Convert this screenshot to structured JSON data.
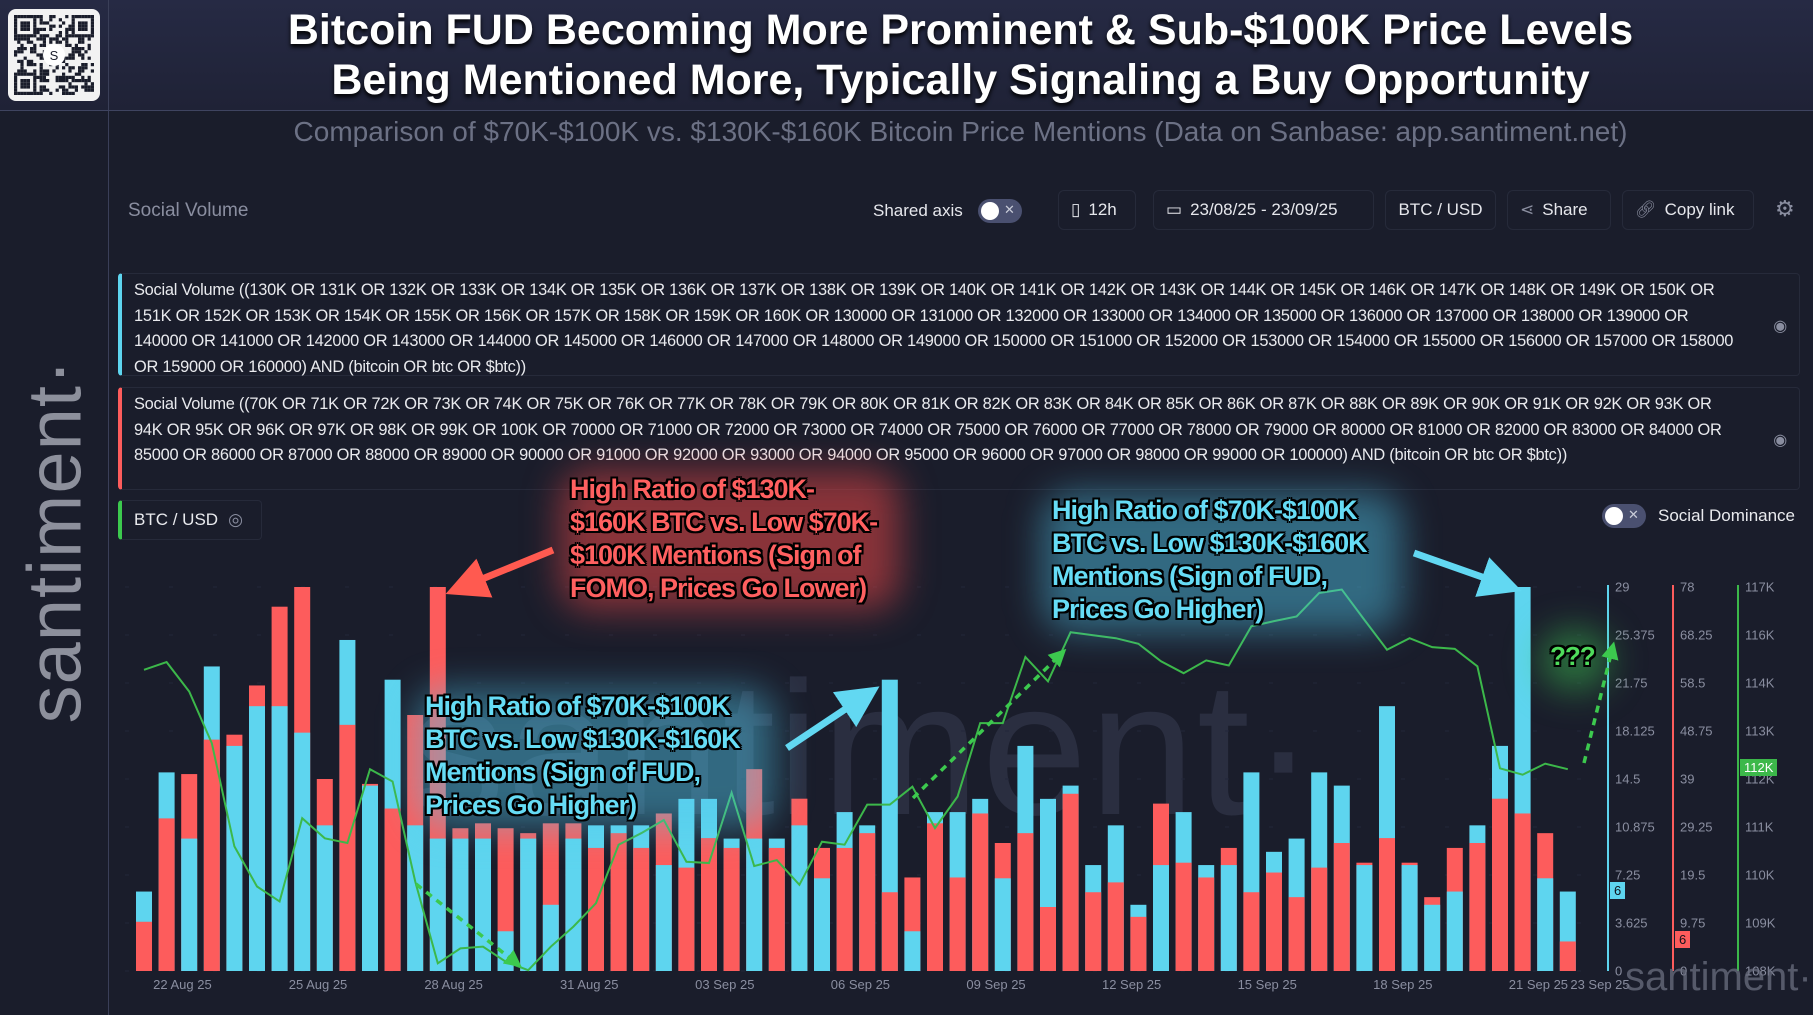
{
  "header": {
    "title_line1": "Bitcoin FUD Becoming More Prominent & Sub-$100K Price Levels",
    "title_line2": "Being Mentioned More, Typically Signaling a Buy Opportunity",
    "subtitle": "Comparison of $70K-$100K vs. $130K-$160K Bitcoin Price Mentions (Data on Sanbase: app.santiment.net)"
  },
  "brand": {
    "vertical_logo": "santiment·",
    "watermark": "santiment·",
    "corner_logo": "santiment·",
    "qr_center": "S"
  },
  "toolbar": {
    "section_label": "Social Volume",
    "shared_axis_label": "Shared axis",
    "interval": "12h",
    "date_range": "23/08/25 - 23/09/25",
    "pair": "BTC / USD",
    "share": "Share",
    "copy_link": "Copy link"
  },
  "metrics": [
    {
      "text": "Social Volume ((130K OR 131K OR 132K OR 133K OR 134K OR 135K OR 136K OR 137K OR 138K OR 139K OR 140K OR 141K OR 142K OR 143K OR 144K OR 145K OR 146K OR 147K OR 148K OR 149K OR 150K OR 151K OR 152K OR 153K OR 154K OR 155K OR 156K OR 157K OR 158K OR 159K OR 160K OR 130000 OR 131000 OR 132000 OR 133000 OR 134000 OR 135000 OR 136000 OR 137000 OR 138000 OR 139000 OR 140000 OR 141000 OR 142000 OR 143000 OR 144000 OR 145000 OR 146000 OR 147000 OR 148000 OR 149000 OR 150000 OR 151000 OR 152000 OR 153000 OR 154000 OR 155000 OR 156000 OR 157000 OR 158000 OR 159000 OR 160000) AND (bitcoin OR btc OR $btc))",
      "color": "#5ed5ef"
    },
    {
      "text": "Social Volume ((70K OR 71K OR 72K OR 73K OR 74K OR 75K OR 76K OR 77K OR 78K OR 79K OR 80K OR 81K OR 82K OR 83K OR 84K OR 85K OR 86K OR 87K OR 88K OR 89K OR 90K OR 91K OR 92K OR 93K OR 94K OR 95K OR 96K OR 97K OR 98K OR 99K OR 100K OR 70000 OR 71000 OR 72000 OR 73000 OR 74000 OR 75000 OR 76000 OR 77000 OR 78000 OR 79000 OR 80000 OR 81000 OR 82000 OR 83000 OR 84000 OR 85000 OR 86000 OR 87000 OR 88000 OR 89000 OR 90000 OR 91000 OR 92000 OR 93000 OR 94000 OR 95000 OR 96000 OR 97000 OR 98000 OR 99000 OR 100000) AND (bitcoin OR btc OR $btc))",
      "color": "#fd5c5c"
    },
    {
      "text": "BTC / USD",
      "color": "#3cc94e"
    }
  ],
  "social_dominance_label": "Social Dominance",
  "annotations": {
    "red": "High Ratio of $130K-\n$160K BTC vs. Low $70K-\n$100K Mentions (Sign of\nFOMO, Prices Go Lower)",
    "blue_left": "High Ratio of $70K-$100K\nBTC vs. Low $130K-$160K\nMentions (Sign of FUD,\nPrices Go Higher)",
    "blue_right": "High Ratio of $70K-$100K\nBTC vs. Low $130K-$160K\nMentions (Sign of FUD,\nPrices Go Higher)",
    "question": "???"
  },
  "chart_data": {
    "type": "bar",
    "interval": "12h",
    "x_tick_labels": [
      "22 Aug 25",
      "25 Aug 25",
      "28 Aug 25",
      "31 Aug 25",
      "03 Sep 25",
      "06 Sep 25",
      "09 Sep 25",
      "12 Sep 25",
      "15 Sep 25",
      "18 Sep 25",
      "21 Sep 25",
      "23 Sep 25"
    ],
    "series": [
      {
        "type": "bar",
        "color": "#5ed5ef",
        "axis_ticks": [
          "29",
          "25.375",
          "21.75",
          "18.125",
          "14.5",
          "10.875",
          "7.25",
          "3.625",
          "0"
        ],
        "ylim": [
          0,
          29
        ],
        "last_value": "6",
        "values": [
          6,
          15,
          10,
          23,
          17,
          20,
          20,
          18,
          11,
          25,
          14,
          22,
          11,
          10,
          10,
          10,
          3,
          10,
          5,
          10,
          11,
          11,
          11,
          8,
          13,
          13,
          10,
          10,
          10,
          11,
          7,
          12,
          11,
          22,
          3,
          12,
          12,
          13,
          7,
          17,
          13,
          14,
          8,
          11,
          5,
          8,
          12,
          8,
          8,
          15,
          9,
          10,
          15,
          14,
          8,
          20,
          8,
          5,
          6,
          11,
          17,
          29,
          7,
          6
        ]
      },
      {
        "type": "bar",
        "color": "#fd5c5c",
        "axis_ticks": [
          "78",
          "68.25",
          "58.5",
          "48.75",
          "39",
          "29.25",
          "19.5",
          "9.75",
          "0"
        ],
        "ylim": [
          0,
          78
        ],
        "last_value": "6",
        "values": [
          10,
          31,
          40,
          47,
          48,
          58,
          74,
          78,
          39,
          50,
          38,
          33,
          52,
          78,
          29,
          30,
          29,
          28,
          30,
          30,
          25,
          28,
          25,
          32,
          21,
          27,
          25,
          41,
          25,
          35,
          25,
          25,
          28,
          16,
          19,
          30,
          19,
          32,
          26,
          28,
          13,
          36,
          16,
          18,
          11,
          34,
          22,
          19,
          25,
          16,
          20,
          15,
          21,
          26,
          22,
          27,
          22,
          15,
          25,
          26,
          35,
          32,
          28,
          6
        ]
      },
      {
        "type": "line",
        "color": "#3cb84a",
        "axis_ticks": [
          "117K",
          "116K",
          "114K",
          "113K",
          "112K",
          "111K",
          "110K",
          "109K",
          "108K"
        ],
        "ylim": [
          108000,
          117000
        ],
        "last_value": "112K",
        "values": [
          115060,
          115240,
          114550,
          113340,
          110920,
          109980,
          109630,
          111580,
          111110,
          111000,
          112730,
          112440,
          110100,
          108180,
          108530,
          108570,
          108220,
          108020,
          108570,
          109040,
          109590,
          110960,
          111230,
          111540,
          110560,
          110530,
          112180,
          110460,
          110600,
          110020,
          111030,
          110960,
          111900,
          111900,
          112320,
          111350,
          112090,
          113810,
          113810,
          115360,
          114790,
          115940,
          115870,
          115800,
          115670,
          115260,
          114980,
          115280,
          115160,
          116080,
          116200,
          116310,
          116860,
          116940,
          116230,
          115530,
          115800,
          115590,
          115550,
          115140,
          112750,
          112600,
          112860,
          112730
        ]
      }
    ]
  }
}
